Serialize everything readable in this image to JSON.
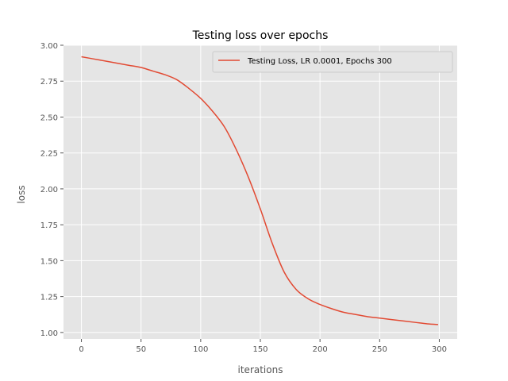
{
  "chart_data": {
    "type": "line",
    "title": "Testing loss over epochs",
    "xlabel": "iterations",
    "ylabel": "loss",
    "xlim": [
      -15,
      315
    ],
    "ylim": [
      0.955,
      3.0
    ],
    "xticks": [
      0,
      50,
      100,
      150,
      200,
      250,
      300
    ],
    "yticks": [
      1.0,
      1.25,
      1.5,
      1.75,
      2.0,
      2.25,
      2.5,
      2.75,
      3.0
    ],
    "ytick_labels": [
      "1.00",
      "1.25",
      "1.50",
      "1.75",
      "2.00",
      "2.25",
      "2.50",
      "2.75",
      "3.00"
    ],
    "grid": true,
    "legend_position": "top-right",
    "series": [
      {
        "name": "Testing Loss, LR 0.0001, Epochs 300",
        "color": "#e24a33",
        "x": [
          0,
          10,
          20,
          30,
          40,
          50,
          60,
          70,
          80,
          90,
          100,
          110,
          120,
          130,
          140,
          150,
          160,
          170,
          180,
          190,
          200,
          210,
          220,
          230,
          240,
          250,
          260,
          270,
          280,
          290,
          299
        ],
        "y": [
          2.92,
          2.905,
          2.89,
          2.875,
          2.86,
          2.845,
          2.82,
          2.795,
          2.76,
          2.7,
          2.63,
          2.54,
          2.43,
          2.27,
          2.08,
          1.86,
          1.62,
          1.42,
          1.3,
          1.235,
          1.195,
          1.165,
          1.14,
          1.125,
          1.11,
          1.1,
          1.09,
          1.08,
          1.07,
          1.06,
          1.055
        ]
      }
    ]
  }
}
